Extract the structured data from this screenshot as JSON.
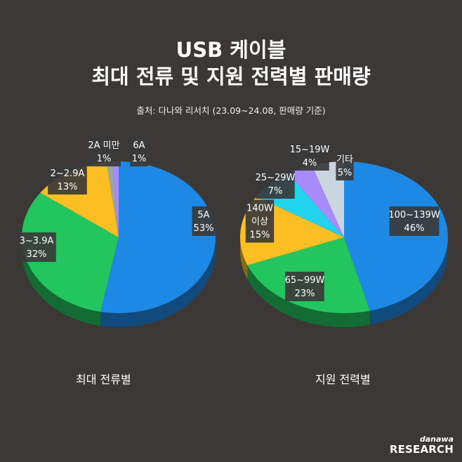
{
  "header": {
    "title_line1": "USB 케이블",
    "title_line2": "최대 전류 및 지원 전력별 판매량",
    "source": "출처: 다나와 리서치 (23.09~24.08, 판매량 기준)"
  },
  "chart_data": [
    {
      "type": "pie",
      "caption": "최대 전류별",
      "slices": [
        {
          "label": "5A",
          "value": 53,
          "value_label": "53%",
          "color": "#1e88e5"
        },
        {
          "label": "3~3.9A",
          "value": 32,
          "value_label": "32%",
          "color": "#22c55e"
        },
        {
          "label": "2~2.9A",
          "value": 13,
          "value_label": "13%",
          "color": "#fbbf24"
        },
        {
          "label": "2A 미만",
          "value": 1,
          "value_label": "1%",
          "color": "#9ca3af"
        },
        {
          "label": "6A",
          "value": 1,
          "value_label": "1%",
          "color": "#a78bfa"
        }
      ]
    },
    {
      "type": "pie",
      "caption": "지원 전력별",
      "slices": [
        {
          "label": "100~139W",
          "value": 46,
          "value_label": "46%",
          "color": "#1e88e5"
        },
        {
          "label": "65~99W",
          "value": 23,
          "value_label": "23%",
          "color": "#22c55e"
        },
        {
          "label": "140W 이상",
          "value": 15,
          "value_label": "15%",
          "color": "#fbbf24"
        },
        {
          "label": "25~29W",
          "value": 7,
          "value_label": "7%",
          "color": "#22d3ee"
        },
        {
          "label": "15~19W",
          "value": 4,
          "value_label": "4%",
          "color": "#a78bfa"
        },
        {
          "label": "기타",
          "value": 5,
          "value_label": "5%",
          "color": "#cbd5e1"
        }
      ]
    }
  ],
  "logo": {
    "line1": "danawa",
    "line2": "RESEARCH"
  }
}
